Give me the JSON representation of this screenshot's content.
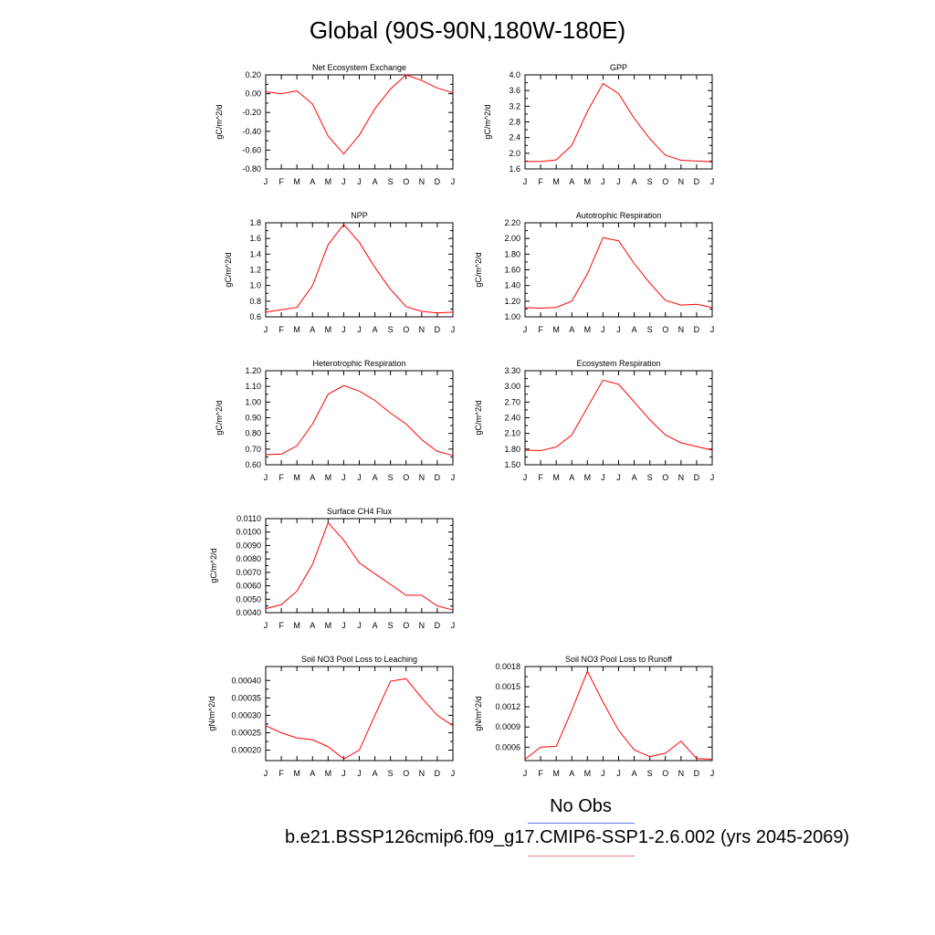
{
  "figure": {
    "title": "Global (90S-90N,180W-180E)",
    "legend": {
      "obs_label": "No Obs",
      "run_label": "b.e21.BSSP126cmip6.f09_g17.CMIP6-SSP1-2.6.002 (yrs 2045-2069)",
      "obs_color": "#6a78e6",
      "run_color": "#f2808a"
    },
    "line_color": "#ff0000"
  },
  "chart_data": [
    {
      "type": "line",
      "title": "Net Ecosystem Exchange",
      "ylabel": "gC/m^2/d",
      "x_tick_labels": [
        "J",
        "F",
        "M",
        "A",
        "M",
        "J",
        "J",
        "A",
        "S",
        "O",
        "N",
        "D",
        "J"
      ],
      "ylim": [
        -0.8,
        0.2
      ],
      "y_ticks": [
        -0.8,
        -0.6,
        -0.4,
        -0.2,
        0.0,
        0.2
      ],
      "y_tick_labels": [
        "-0.80",
        "-0.60",
        "-0.40",
        "-0.20",
        "0.00",
        "0.20"
      ],
      "values": [
        0.02,
        0.0,
        0.03,
        -0.11,
        -0.45,
        -0.64,
        -0.44,
        -0.16,
        0.05,
        0.2,
        0.14,
        0.06,
        0.01
      ]
    },
    {
      "type": "line",
      "title": "GPP",
      "ylabel": "gC/m^2/d",
      "x_tick_labels": [
        "J",
        "F",
        "M",
        "A",
        "M",
        "J",
        "J",
        "A",
        "S",
        "O",
        "N",
        "D",
        "J"
      ],
      "ylim": [
        1.6,
        4.0
      ],
      "y_ticks": [
        1.6,
        2.0,
        2.4,
        2.8,
        3.2,
        3.6,
        4.0
      ],
      "y_tick_labels": [
        "1.6",
        "2.0",
        "2.4",
        "2.8",
        "3.2",
        "3.6",
        "4.0"
      ],
      "values": [
        1.79,
        1.79,
        1.83,
        2.2,
        3.07,
        3.78,
        3.52,
        2.89,
        2.37,
        1.95,
        1.82,
        1.8,
        1.78
      ]
    },
    {
      "type": "line",
      "title": "NPP",
      "ylabel": "gC/m^2/d",
      "x_tick_labels": [
        "J",
        "F",
        "M",
        "A",
        "M",
        "J",
        "J",
        "A",
        "S",
        "O",
        "N",
        "D",
        "J"
      ],
      "ylim": [
        0.6,
        1.8
      ],
      "y_ticks": [
        0.6,
        0.8,
        1.0,
        1.2,
        1.4,
        1.6,
        1.8
      ],
      "y_tick_labels": [
        "0.6",
        "0.8",
        "1.0",
        "1.2",
        "1.4",
        "1.6",
        "1.8"
      ],
      "values": [
        0.66,
        0.69,
        0.72,
        1.0,
        1.52,
        1.78,
        1.55,
        1.23,
        0.95,
        0.73,
        0.67,
        0.65,
        0.66
      ]
    },
    {
      "type": "line",
      "title": "Autotrophic Respiration",
      "ylabel": "gC/m^2/d",
      "x_tick_labels": [
        "J",
        "F",
        "M",
        "A",
        "M",
        "J",
        "J",
        "A",
        "S",
        "O",
        "N",
        "D",
        "J"
      ],
      "ylim": [
        1.0,
        2.2
      ],
      "y_ticks": [
        1.0,
        1.2,
        1.4,
        1.6,
        1.8,
        2.0,
        2.2
      ],
      "y_tick_labels": [
        "1.00",
        "1.20",
        "1.40",
        "1.60",
        "1.80",
        "2.00",
        "2.20"
      ],
      "values": [
        1.12,
        1.11,
        1.12,
        1.2,
        1.55,
        2.01,
        1.97,
        1.68,
        1.43,
        1.21,
        1.15,
        1.16,
        1.12
      ]
    },
    {
      "type": "line",
      "title": "Heterotrophic Respiration",
      "ylabel": "gC/m^2/d",
      "x_tick_labels": [
        "J",
        "F",
        "M",
        "A",
        "M",
        "J",
        "J",
        "A",
        "S",
        "O",
        "N",
        "D",
        "J"
      ],
      "ylim": [
        0.6,
        1.2
      ],
      "y_ticks": [
        0.6,
        0.7,
        0.8,
        0.9,
        1.0,
        1.1,
        1.2
      ],
      "y_tick_labels": [
        "0.60",
        "0.70",
        "0.80",
        "0.90",
        "1.00",
        "1.10",
        "1.20"
      ],
      "values": [
        0.665,
        0.668,
        0.72,
        0.86,
        1.05,
        1.105,
        1.07,
        1.01,
        0.93,
        0.86,
        0.76,
        0.685,
        0.66
      ]
    },
    {
      "type": "line",
      "title": "Ecosystem Respiration",
      "ylabel": "gC/m^2/d",
      "x_tick_labels": [
        "J",
        "F",
        "M",
        "A",
        "M",
        "J",
        "J",
        "A",
        "S",
        "O",
        "N",
        "D",
        "J"
      ],
      "ylim": [
        1.5,
        3.3
      ],
      "y_ticks": [
        1.5,
        1.8,
        2.1,
        2.4,
        2.7,
        3.0,
        3.3
      ],
      "y_tick_labels": [
        "1.50",
        "1.80",
        "2.10",
        "2.40",
        "2.70",
        "3.00",
        "3.30"
      ],
      "values": [
        1.78,
        1.77,
        1.84,
        2.07,
        2.6,
        3.12,
        3.04,
        2.7,
        2.36,
        2.07,
        1.92,
        1.85,
        1.78
      ]
    },
    {
      "type": "line",
      "title": "Surface CH4 Flux",
      "ylabel": "gC/m^2/d",
      "x_tick_labels": [
        "J",
        "F",
        "M",
        "A",
        "M",
        "J",
        "J",
        "A",
        "S",
        "O",
        "N",
        "D",
        "J"
      ],
      "ylim": [
        0.004,
        0.011
      ],
      "y_ticks": [
        0.004,
        0.005,
        0.006,
        0.007,
        0.008,
        0.009,
        0.01,
        0.011
      ],
      "y_tick_labels": [
        "0.0040",
        "0.0050",
        "0.0060",
        "0.0070",
        "0.0080",
        "0.0090",
        "0.0100",
        "0.0110"
      ],
      "values": [
        0.0043,
        0.0046,
        0.0056,
        0.0076,
        0.0107,
        0.0094,
        0.0077,
        0.0069,
        0.0061,
        0.0053,
        0.0053,
        0.0045,
        0.0042
      ]
    },
    {
      "type": "line",
      "title": "Soil NO3 Pool Loss to Leaching",
      "ylabel": "gN/m^2/d",
      "x_tick_labels": [
        "J",
        "F",
        "M",
        "A",
        "M",
        "J",
        "J",
        "A",
        "S",
        "O",
        "N",
        "D",
        "J"
      ],
      "ylim": [
        0.00017,
        0.00044
      ],
      "y_ticks": [
        0.0002,
        0.00025,
        0.0003,
        0.00035,
        0.0004
      ],
      "y_tick_labels": [
        "0.00020",
        "0.00025",
        "0.00030",
        "0.00035",
        "0.00040"
      ],
      "values": [
        0.00027,
        0.00025,
        0.000235,
        0.00023,
        0.00021,
        0.000175,
        0.0002,
        0.0003,
        0.000398,
        0.000405,
        0.00035,
        0.0003,
        0.00027
      ]
    },
    {
      "type": "line",
      "title": "Soil NO3 Pool Loss to Runoff",
      "ylabel": "gN/m^2/d",
      "x_tick_labels": [
        "J",
        "F",
        "M",
        "A",
        "M",
        "J",
        "J",
        "A",
        "S",
        "O",
        "N",
        "D",
        "J"
      ],
      "ylim": [
        0.0004,
        0.0018
      ],
      "y_ticks": [
        0.0006,
        0.0009,
        0.0012,
        0.0015,
        0.0018
      ],
      "y_tick_labels": [
        "0.0006",
        "0.0009",
        "0.0012",
        "0.0015",
        "0.0018"
      ],
      "values": [
        0.00042,
        0.0006,
        0.00061,
        0.00115,
        0.00173,
        0.00127,
        0.00085,
        0.00056,
        0.00046,
        0.00051,
        0.00069,
        0.00043,
        0.00042
      ]
    }
  ]
}
